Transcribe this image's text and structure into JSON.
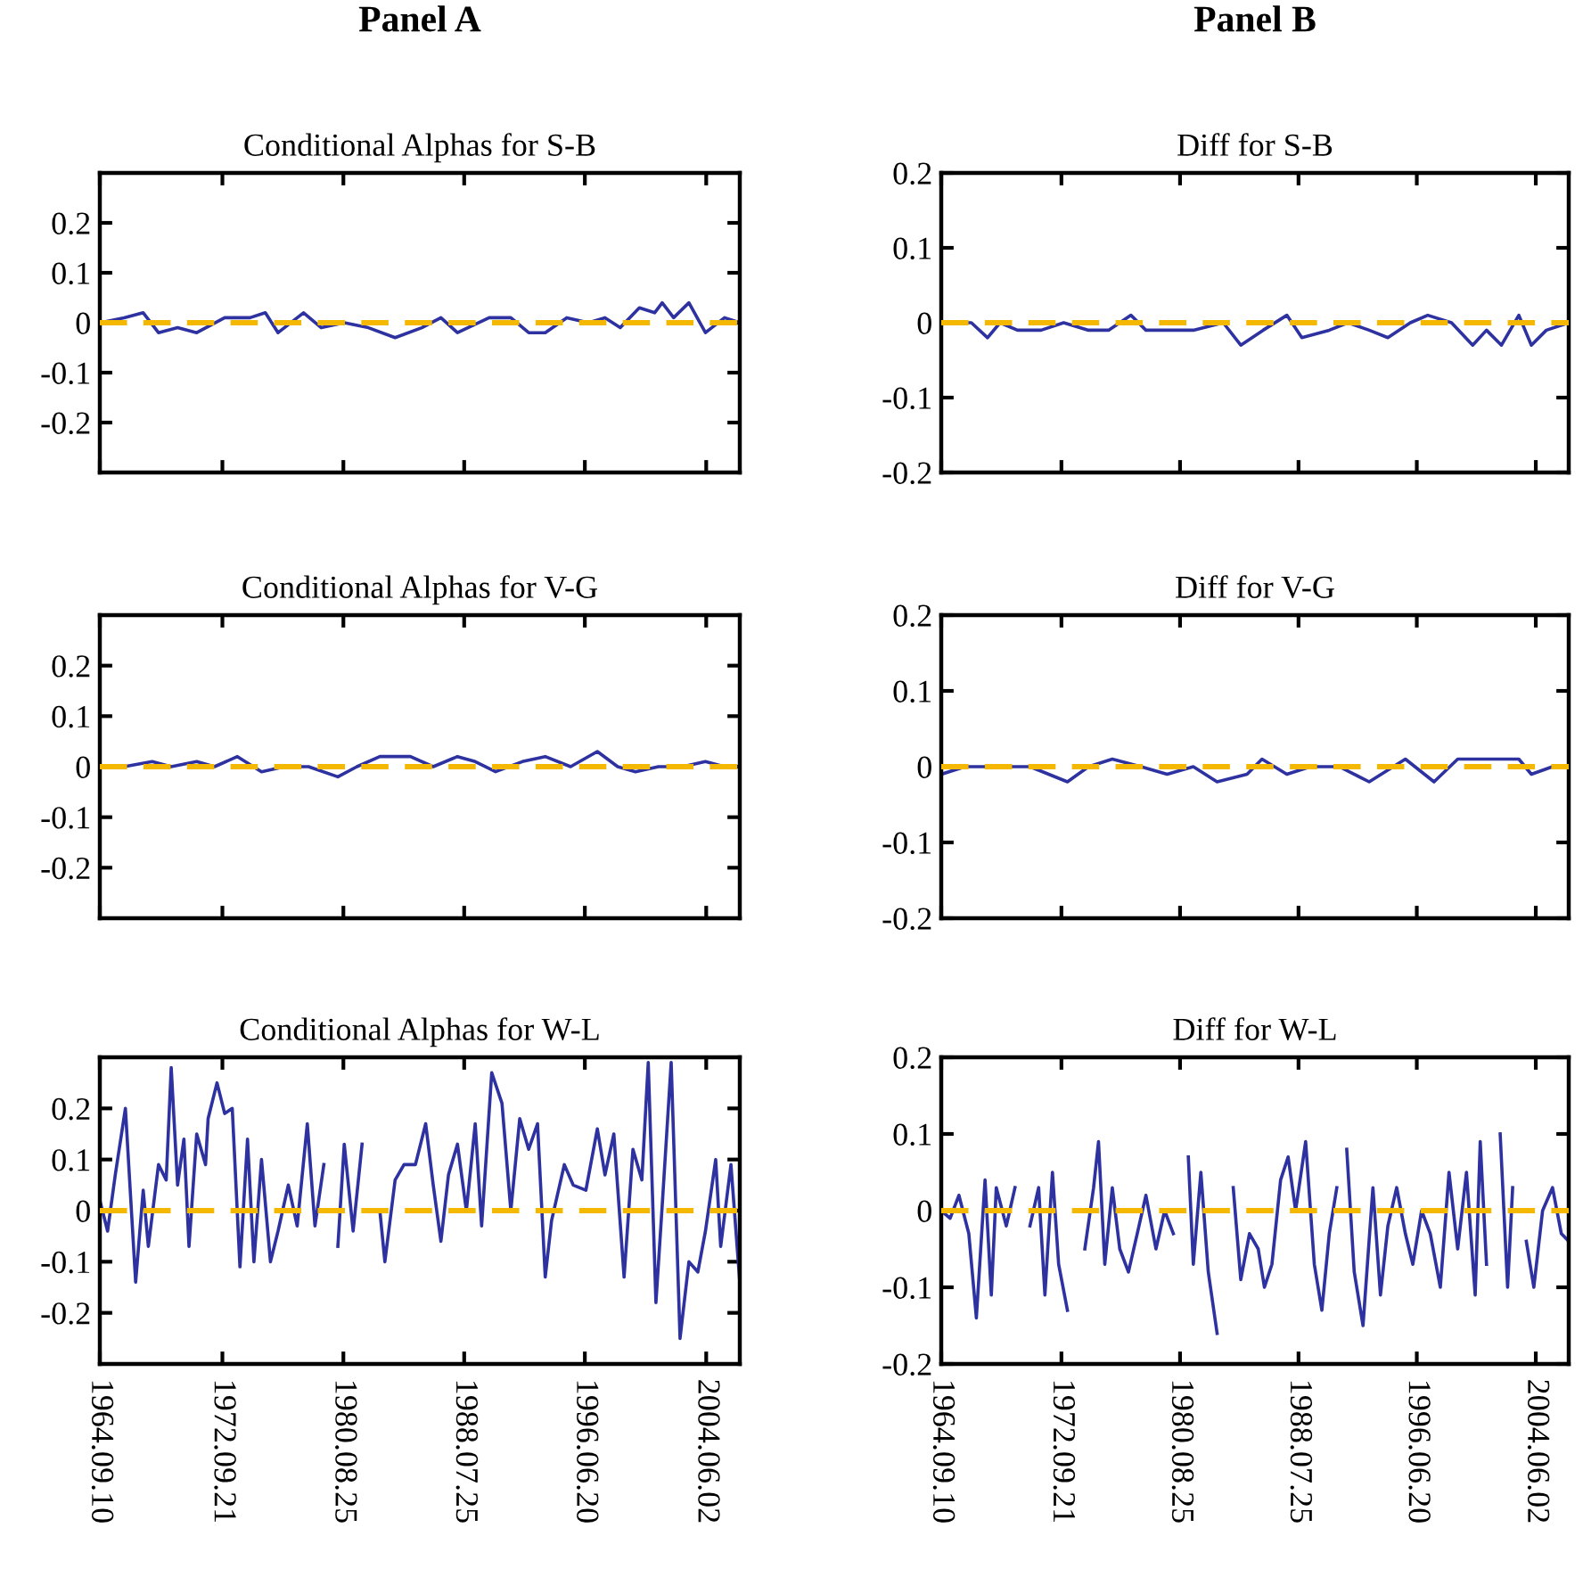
{
  "chart_data": [
    {
      "type": "line",
      "title": "Panel A",
      "subtitle": "Conditional Alphas for S-B",
      "xlim": [
        "1964-09-10",
        "2006-08"
      ],
      "ylim": [
        -0.3,
        0.3
      ],
      "yticks": [
        -0.2,
        -0.1,
        0,
        0.1,
        0.2
      ],
      "tick_labels": "y",
      "xticks": [
        {
          "value": "1964-09-10",
          "label": null
        },
        {
          "value": "1972-09-21",
          "label": null
        },
        {
          "value": "1980-08-25",
          "label": null
        },
        {
          "value": "1988-07-25",
          "label": null
        },
        {
          "value": "1996-06-20",
          "label": null
        },
        {
          "value": "2004-06-02",
          "label": null
        }
      ],
      "ref_lines": [
        {
          "axis": "y",
          "value": 0,
          "color": "#f5b800",
          "line_style": "dashed"
        }
      ],
      "series": [
        {
          "color": "#2e32a0",
          "line_style": "solid",
          "x": [
            "1964-09-10",
            "1966-04",
            "1967-07",
            "1968-07",
            "1969-10",
            "1971-01",
            "1972-11",
            "1974-07",
            "1975-07",
            "1976-05",
            "1978-01",
            "1979-03",
            "1980-09",
            "1982-04",
            "1984-01",
            "1985-10",
            "1987-01",
            "1988-02",
            "1990-03",
            "1991-08",
            "1992-10",
            "1993-11",
            "1995-04",
            "1996-09",
            "1997-10",
            "1998-10",
            "2000-01",
            "2001-01",
            "2001-07",
            "2002-04",
            "2003-04",
            "2004-05",
            "2005-08",
            "2006-08"
          ],
          "values": [
            0,
            0.01,
            0.02,
            -0.02,
            -0.01,
            -0.02,
            0.01,
            0.01,
            0.02,
            -0.02,
            0.02,
            -0.01,
            0,
            -0.01,
            -0.03,
            -0.01,
            0.01,
            -0.02,
            0.01,
            0.01,
            -0.02,
            -0.02,
            0.01,
            0,
            0.01,
            -0.01,
            0.03,
            0.02,
            0.04,
            0.01,
            0.04,
            -0.02,
            0.01,
            0
          ]
        }
      ]
    },
    {
      "type": "line",
      "title": "Panel B",
      "subtitle": "Diff for S-B",
      "xlim": [
        "1964-09-10",
        "2006-08"
      ],
      "ylim": [
        -0.2,
        0.2
      ],
      "yticks": [
        -0.2,
        -0.1,
        0,
        0.1,
        0.2
      ],
      "tick_labels": "y",
      "xticks": [
        {
          "value": "1964-09-10",
          "label": null
        },
        {
          "value": "1972-09-21",
          "label": null
        },
        {
          "value": "1980-08-25",
          "label": null
        },
        {
          "value": "1988-07-25",
          "label": null
        },
        {
          "value": "1996-06-20",
          "label": null
        },
        {
          "value": "2004-06-02",
          "label": null
        }
      ],
      "ref_lines": [
        {
          "axis": "y",
          "value": 0,
          "color": "#f5b800",
          "line_style": "dashed"
        }
      ],
      "series": [
        {
          "color": "#2e32a0",
          "line_style": "solid",
          "x": [
            "1964-09-10",
            "1966-09",
            "1967-10",
            "1968-08",
            "1969-10",
            "1971-05",
            "1972-11",
            "1974-07",
            "1975-11",
            "1977-05",
            "1978-05",
            "1980-01",
            "1981-07",
            "1983-07",
            "1984-09",
            "1986-03",
            "1987-10",
            "1988-10",
            "1990-08",
            "1991-11",
            "1993-04",
            "1994-07",
            "1996-01",
            "1997-03",
            "1998-10",
            "2000-03",
            "2001-02",
            "2002-02",
            "2003-04",
            "2004-02",
            "2005-02",
            "2006-08"
          ],
          "values": [
            0,
            0,
            -0.02,
            0,
            -0.01,
            -0.01,
            0,
            -0.01,
            -0.01,
            0.01,
            -0.01,
            -0.01,
            -0.01,
            0,
            -0.03,
            -0.01,
            0.01,
            -0.02,
            -0.01,
            0,
            -0.01,
            -0.02,
            0,
            0.01,
            0,
            -0.03,
            -0.01,
            -0.03,
            0.01,
            -0.03,
            -0.01,
            0
          ]
        }
      ]
    },
    {
      "type": "line",
      "subtitle": "Conditional Alphas for V-G",
      "xlim": [
        "1964-09-10",
        "2006-08"
      ],
      "ylim": [
        -0.3,
        0.3
      ],
      "yticks": [
        -0.2,
        -0.1,
        0,
        0.1,
        0.2
      ],
      "tick_labels": "y",
      "xticks": [
        {
          "value": "1964-09-10",
          "label": null
        },
        {
          "value": "1972-09-21",
          "label": null
        },
        {
          "value": "1980-08-25",
          "label": null
        },
        {
          "value": "1988-07-25",
          "label": null
        },
        {
          "value": "1996-06-20",
          "label": null
        },
        {
          "value": "2004-06-02",
          "label": null
        }
      ],
      "ref_lines": [
        {
          "axis": "y",
          "value": 0,
          "color": "#f5b800",
          "line_style": "dashed"
        }
      ],
      "series": [
        {
          "color": "#2e32a0",
          "line_style": "solid",
          "x": [
            "1964-09-10",
            "1966-04",
            "1968-02",
            "1969-05",
            "1971-01",
            "1972-03",
            "1973-09",
            "1975-04",
            "1976-10",
            "1978-05",
            "1980-04",
            "1981-07",
            "1983-01",
            "1985-01",
            "1986-07",
            "1988-02",
            "1989-04",
            "1990-08",
            "1992-05",
            "1993-11",
            "1995-07",
            "1997-04",
            "1998-08",
            "1999-10",
            "2001-04",
            "2002-11",
            "2004-05",
            "2005-08",
            "2006-08"
          ],
          "values": [
            0,
            0,
            0.01,
            0,
            0.01,
            0,
            0.02,
            -0.01,
            0,
            0,
            -0.02,
            0,
            0.02,
            0.02,
            0,
            0.02,
            0.01,
            -0.01,
            0.01,
            0.02,
            0,
            0.03,
            0,
            -0.01,
            0,
            0,
            0.01,
            0,
            0
          ]
        }
      ]
    },
    {
      "type": "line",
      "subtitle": "Diff for V-G",
      "xlim": [
        "1964-09-10",
        "2006-08"
      ],
      "ylim": [
        -0.2,
        0.2
      ],
      "yticks": [
        -0.2,
        -0.1,
        0,
        0.1,
        0.2
      ],
      "tick_labels": "y",
      "xticks": [
        {
          "value": "1964-09-10",
          "label": null
        },
        {
          "value": "1972-09-21",
          "label": null
        },
        {
          "value": "1980-08-25",
          "label": null
        },
        {
          "value": "1988-07-25",
          "label": null
        },
        {
          "value": "1996-06-20",
          "label": null
        },
        {
          "value": "2004-06-02",
          "label": null
        }
      ],
      "ref_lines": [
        {
          "axis": "y",
          "value": 0,
          "color": "#f5b800",
          "line_style": "dashed"
        }
      ],
      "series": [
        {
          "color": "#2e32a0",
          "line_style": "solid",
          "x": [
            "1964-09-10",
            "1966-04",
            "1968-03",
            "1970-08",
            "1973-02",
            "1974-07",
            "1976-02",
            "1978-01",
            "1979-10",
            "1981-07",
            "1983-02",
            "1985-02",
            "1986-02",
            "1987-10",
            "1989-05",
            "1991-04",
            "1993-04",
            "1995-09",
            "1997-08",
            "1999-03",
            "2001-02",
            "2003-04",
            "2004-02",
            "2005-07",
            "2006-08"
          ],
          "values": [
            -0.01,
            0,
            0,
            0,
            -0.02,
            0,
            0.01,
            0,
            -0.01,
            0,
            -0.02,
            -0.01,
            0.01,
            -0.01,
            0,
            0,
            -0.02,
            0.01,
            -0.02,
            0.01,
            0.01,
            0.01,
            -0.01,
            0,
            0
          ]
        }
      ]
    },
    {
      "type": "line",
      "subtitle": "Conditional Alphas for W-L",
      "xlim": [
        "1964-09-10",
        "2006-08"
      ],
      "ylim": [
        -0.3,
        0.3
      ],
      "yticks": [
        -0.2,
        -0.1,
        0,
        0.1,
        0.2
      ],
      "xticks": [
        {
          "value": "1964-09-10",
          "label": "1964.09.10"
        },
        {
          "value": "1972-09-21",
          "label": "1972.09.21"
        },
        {
          "value": "1980-08-25",
          "label": "1980.08.25"
        },
        {
          "value": "1988-07-25",
          "label": "1988.07.25"
        },
        {
          "value": "1996-06-20",
          "label": "1996.06.20"
        },
        {
          "value": "2004-06-02",
          "label": "2004.06.02"
        }
      ],
      "ref_lines": [
        {
          "axis": "y",
          "value": 0,
          "color": "#f5b800",
          "line_style": "dashed"
        }
      ],
      "series": [
        {
          "color": "#2e32a0",
          "line_style": "solid",
          "x": [
            "1964-09-10",
            "1965-03",
            "1965-09",
            "1966-05",
            "1967-01",
            "1967-07",
            "1967-11",
            "1968-07",
            "1969-01",
            "1969-05",
            "1969-10",
            "1970-03",
            "1970-07",
            "1971-01",
            "1971-08",
            "1971-10",
            "1972-05",
            "1972-11",
            "1973-05",
            "1973-11",
            "1974-05",
            "1974-10",
            "1975-04",
            "1975-11",
            "1976-05",
            "1977-01",
            "1977-08",
            "1978-04",
            "1978-10",
            "1979-05",
            "1979-11",
            "1980-04",
            "1980-09",
            "1981-04",
            "1981-11",
            "1982-07",
            "1983-01",
            "1983-05",
            "1984-01",
            "1984-08",
            "1985-05",
            "1986-01",
            "1986-07",
            "1987-01",
            "1987-07",
            "1988-02",
            "1988-09",
            "1989-04",
            "1989-09",
            "1990-05",
            "1991-01",
            "1991-08",
            "1992-03",
            "1992-10",
            "1993-05",
            "1993-11",
            "1994-04",
            "1995-02",
            "1995-09",
            "1996-07",
            "1997-04",
            "1997-10",
            "1998-05",
            "1999-01",
            "1999-08",
            "2000-03",
            "2000-08",
            "2001-02",
            "2001-07",
            "2002-02",
            "2002-09",
            "2003-04",
            "2003-11",
            "2004-05",
            "2005-01",
            "2005-05",
            "2006-01",
            "2006-08"
          ],
          "values": [
            0.02,
            -0.04,
            0.07,
            0.2,
            -0.14,
            0.04,
            -0.07,
            0.09,
            0.06,
            0.28,
            0.05,
            0.14,
            -0.07,
            0.15,
            0.09,
            0.18,
            0.25,
            0.19,
            0.2,
            -0.11,
            0.14,
            -0.1,
            0.1,
            -0.1,
            -0.04,
            0.05,
            -0.03,
            0.17,
            -0.03,
            0.09,
            null,
            -0.07,
            0.13,
            -0.04,
            0.13,
            null,
            0,
            -0.1,
            0.06,
            0.09,
            0.09,
            0.17,
            0.05,
            -0.06,
            0.07,
            0.13,
            0,
            0.17,
            -0.03,
            0.27,
            0.21,
            0,
            0.18,
            0.12,
            0.17,
            -0.13,
            -0.02,
            0.09,
            0.05,
            0.04,
            0.16,
            0.07,
            0.15,
            -0.13,
            0.12,
            0.06,
            0.29,
            -0.18,
            0.01,
            0.29,
            -0.25,
            -0.1,
            -0.12,
            -0.04,
            0.1,
            -0.07,
            0.09,
            -0.14
          ]
        }
      ]
    },
    {
      "type": "line",
      "subtitle": "Diff for W-L",
      "xlim": [
        "1964-09-10",
        "2006-08"
      ],
      "ylim": [
        -0.2,
        0.2
      ],
      "yticks": [
        -0.2,
        -0.1,
        0,
        0.1,
        0.2
      ],
      "xticks": [
        {
          "value": "1964-09-10",
          "label": "1964.09.10"
        },
        {
          "value": "1972-09-21",
          "label": "1972.09.21"
        },
        {
          "value": "1980-08-25",
          "label": "1980.08.25"
        },
        {
          "value": "1988-07-25",
          "label": "1988.07.25"
        },
        {
          "value": "1996-06-20",
          "label": "1996.06.20"
        },
        {
          "value": "2004-06-02",
          "label": "2004.06.02"
        }
      ],
      "ref_lines": [
        {
          "axis": "y",
          "value": 0,
          "color": "#f5b800",
          "line_style": "dashed"
        }
      ],
      "series": [
        {
          "color": "#2e32a0",
          "line_style": "solid",
          "x": [
            "1964-09-10",
            "1965-04",
            "1965-11",
            "1966-07",
            "1967-01",
            "1967-08",
            "1968-01",
            "1968-05",
            "1969-01",
            "1969-08",
            "1970-02",
            "1970-08",
            "1971-03",
            "1971-08",
            "1972-02",
            "1972-07",
            "1973-02",
            "1973-09",
            "1974-04",
            "1974-11",
            "1975-03",
            "1975-08",
            "1976-02",
            "1976-08",
            "1977-03",
            "1977-10",
            "1978-05",
            "1979-01",
            "1979-08",
            "1980-03",
            "1980-09",
            "1981-03",
            "1981-07",
            "1982-01",
            "1982-07",
            "1983-02",
            "1983-08",
            "1984-03",
            "1984-09",
            "1985-04",
            "1985-11",
            "1986-04",
            "1986-10",
            "1987-05",
            "1987-11",
            "1988-05",
            "1989-01",
            "1989-08",
            "1990-02",
            "1990-08",
            "1991-02",
            "1991-07",
            "1991-10",
            "1992-04",
            "1992-11",
            "1993-07",
            "1994-01",
            "1994-07",
            "1995-02",
            "1995-09",
            "1996-03",
            "1996-10",
            "1997-05",
            "1998-01",
            "1998-08",
            "1999-03",
            "1999-10",
            "2000-05",
            "2000-09",
            "2001-02",
            "2001-08",
            "2002-01",
            "2002-07",
            "2002-11",
            "2003-04",
            "2003-10",
            "2004-04",
            "2004-11",
            "2005-07",
            "2006-02",
            "2006-08"
          ],
          "values": [
            0,
            -0.01,
            0.02,
            -0.03,
            -0.14,
            0.04,
            -0.11,
            0.03,
            -0.02,
            0.03,
            null,
            -0.02,
            0.03,
            -0.11,
            0.05,
            -0.07,
            -0.13,
            null,
            -0.05,
            0.03,
            0.09,
            -0.07,
            0.03,
            -0.05,
            -0.08,
            -0.03,
            0.02,
            -0.05,
            0,
            -0.03,
            null,
            0.07,
            -0.07,
            0.05,
            -0.08,
            -0.16,
            null,
            0.03,
            -0.09,
            -0.03,
            -0.05,
            -0.1,
            -0.07,
            0.04,
            0.07,
            0,
            0.09,
            -0.07,
            -0.13,
            -0.03,
            0.03,
            null,
            0.08,
            -0.08,
            -0.15,
            0.03,
            -0.11,
            -0.02,
            0.03,
            -0.03,
            -0.07,
            0,
            -0.03,
            -0.1,
            0.05,
            -0.05,
            0.05,
            -0.11,
            0.09,
            -0.07,
            null,
            0.1,
            -0.1,
            0.03,
            null,
            -0.04,
            -0.1,
            0,
            0.03,
            -0.03,
            -0.04
          ]
        }
      ]
    }
  ]
}
